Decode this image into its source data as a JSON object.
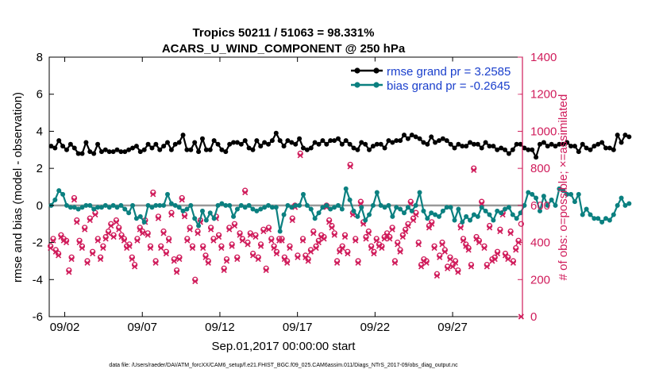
{
  "chart_data": {
    "type": "line",
    "title_line1": "Tropics 50211 / 51063 = 98.331%",
    "title_line2": "ACARS_U_WIND_COMPONENT @ 250 hPa",
    "xlabel": "Sep.01,2017 00:00:00 start",
    "ylabel_left": "rmse and bias (model - observation)",
    "ylabel_right": "# of obs: o=possible; ×=assimilated",
    "footer": "data file: /Users/raeder/DAI/ATM_forcXX/CAM6_setup/f.e21.FHIST_BGC.f09_025.CAM6assim.011/Diags_NTrS_2017-09/obs_diag_output.nc",
    "xlim": [
      0,
      30.5
    ],
    "ylim_left": [
      -6,
      8
    ],
    "ylim_right": [
      0,
      1400
    ],
    "x_tick_values": [
      1,
      6,
      11,
      16,
      21,
      26
    ],
    "x_tick_labels": [
      "09/02",
      "09/07",
      "09/12",
      "09/17",
      "09/22",
      "09/27"
    ],
    "y_left_ticks": [
      -6,
      -4,
      -2,
      0,
      2,
      4,
      6,
      8
    ],
    "y_right_ticks": [
      0,
      200,
      400,
      600,
      800,
      1000,
      1200,
      1400
    ],
    "zero_line": 0,
    "legend": {
      "rmse": "rmse grand pr = 3.2585",
      "bias": "bias grand pr = -0.2645"
    },
    "colors": {
      "rmse": "#000000",
      "bias": "#0b8080",
      "obs": "#d01c5b",
      "zero": "#9a9a9a",
      "legend_text": "#1a3fcc"
    },
    "x_start": 0.125,
    "x_step": 0.25,
    "rmse": [
      3.2,
      3.1,
      3.5,
      3.2,
      3.0,
      3.3,
      3.1,
      2.8,
      2.8,
      3.4,
      2.9,
      2.8,
      3.3,
      2.9,
      3.0,
      2.9,
      2.9,
      3.0,
      2.9,
      2.9,
      3.0,
      3.1,
      3.2,
      2.9,
      3.0,
      3.3,
      3.1,
      3.3,
      3.0,
      3.2,
      3.4,
      3.0,
      3.3,
      3.4,
      3.8,
      3.0,
      3.0,
      3.4,
      2.9,
      3.6,
      3.0,
      3.0,
      3.5,
      3.3,
      3.0,
      2.9,
      3.3,
      3.4,
      3.4,
      3.3,
      3.5,
      3.1,
      3.0,
      3.5,
      3.2,
      3.4,
      3.3,
      3.5,
      3.9,
      3.5,
      3.2,
      3.5,
      3.4,
      3.3,
      3.6,
      3.1,
      3.0,
      3.1,
      3.4,
      3.3,
      3.5,
      3.3,
      3.5,
      3.5,
      3.6,
      3.3,
      3.5,
      3.3,
      3.1,
      3.0,
      3.4,
      3.3,
      3.0,
      3.2,
      3.3,
      3.3,
      3.1,
      3.5,
      3.4,
      3.5,
      3.5,
      3.8,
      3.6,
      3.8,
      3.7,
      3.6,
      3.4,
      3.3,
      3.7,
      3.4,
      3.5,
      3.6,
      3.5,
      3.3,
      3.1,
      3.3,
      3.2,
      3.2,
      3.4,
      3.3,
      3.3,
      3.1,
      3.4,
      3.2,
      3.2,
      3.0,
      3.1,
      3.0,
      2.8,
      3.0,
      3.3,
      3.3,
      3.1,
      3.0,
      3.0,
      2.6,
      3.3,
      3.4,
      3.2,
      3.3,
      3.2,
      3.3,
      3.3,
      3.4,
      3.2,
      3.2,
      2.9,
      3.3,
      3.1,
      3.0,
      3.2,
      3.3,
      3.4,
      3.1,
      3.1,
      3.0,
      3.8,
      3.4,
      3.8,
      3.7
    ],
    "bias": [
      0.0,
      0.3,
      0.8,
      0.6,
      0.0,
      -0.1,
      -0.1,
      -0.2,
      -0.1,
      0.0,
      0.0,
      -0.2,
      -0.1,
      -0.1,
      0.0,
      -0.1,
      0.0,
      -0.1,
      0.0,
      -0.2,
      -0.4,
      0.0,
      -0.7,
      -0.6,
      -0.9,
      0.0,
      -0.1,
      0.0,
      0.0,
      0.0,
      0.6,
      0.1,
      0.0,
      -0.1,
      -0.3,
      -0.2,
      0.0,
      -0.7,
      -1.1,
      -0.3,
      -0.8,
      -0.4,
      -0.7,
      0.0,
      0.1,
      0.0,
      0.0,
      -0.6,
      -0.2,
      0.0,
      -0.1,
      0.0,
      -0.2,
      -0.3,
      -0.2,
      -0.1,
      0.0,
      -0.1,
      -0.1,
      -1.4,
      -0.5,
      0.0,
      -0.1,
      0.0,
      0.0,
      0.6,
      0.0,
      -0.2,
      -0.7,
      -0.4,
      -0.1,
      0.0,
      -0.2,
      -0.1,
      0.0,
      -0.2,
      0.9,
      0.3,
      -0.3,
      -0.6,
      -0.1,
      -0.8,
      -0.5,
      0.0,
      0.7,
      0.0,
      -0.1,
      0.0,
      -0.6,
      -0.1,
      -0.2,
      -0.4,
      -0.1,
      -0.3,
      0.0,
      0.7,
      -0.3,
      -0.7,
      -0.4,
      -0.5,
      -0.6,
      -0.3,
      -0.1,
      -0.1,
      -0.8,
      -0.2,
      -0.9,
      -0.6,
      -0.8,
      -0.5,
      -0.6,
      -0.1,
      -0.3,
      -0.5,
      -0.8,
      -0.3,
      -0.4,
      -0.2,
      -0.1,
      -0.5,
      -0.7,
      -0.4,
      0.0,
      0.7,
      0.6,
      0.4,
      -0.3,
      0.5,
      0.0,
      0.3,
      0.0,
      0.9,
      0.8,
      0.6,
      0.6,
      0.2,
      0.6,
      -0.5,
      -0.2,
      -0.5,
      -0.7,
      -0.7,
      -0.9,
      -0.7,
      -0.8,
      -0.5,
      0.0,
      0.4,
      0.0,
      0.1
    ],
    "obs_possible": [
      380,
      420,
      360,
      340,
      440,
      420,
      410,
      250,
      320,
      640,
      520,
      410,
      380,
      480,
      300,
      530,
      350,
      560,
      420,
      320,
      380,
      430,
      460,
      500,
      440,
      520,
      480,
      440,
      420,
      380,
      390,
      320,
      280,
      420,
      480,
      460,
      520,
      450,
      380,
      670,
      300,
      540,
      380,
      460,
      350,
      420,
      560,
      310,
      250,
      320,
      640,
      550,
      420,
      480,
      380,
      200,
      460,
      520,
      380,
      330,
      300,
      480,
      420,
      540,
      440,
      380,
      260,
      310,
      480,
      390,
      500,
      320,
      450,
      420,
      680,
      400,
      450,
      340,
      440,
      320,
      390,
      470,
      260,
      480,
      420,
      380,
      350,
      420,
      420,
      320,
      300,
      380,
      530,
      600,
      330,
      880,
      420,
      330,
      310,
      360,
      460,
      380,
      410,
      440,
      430,
      600,
      520,
      490,
      450,
      300,
      360,
      380,
      440,
      350,
      820,
      560,
      420,
      300,
      620,
      510,
      430,
      460,
      380,
      350,
      420,
      390,
      380,
      430,
      450,
      430,
      480,
      300,
      400,
      360,
      440,
      470,
      500,
      620,
      530,
      560,
      400,
      280,
      310,
      300,
      490,
      510,
      380,
      230,
      330,
      400,
      360,
      270,
      320,
      280,
      300,
      250,
      490,
      420,
      390,
      370,
      280,
      800,
      430,
      410,
      620,
      380,
      280,
      490,
      310,
      320,
      350,
      470,
      560,
      340,
      320,
      460,
      300,
      370,
      410,
      500
    ],
    "obs_assimilated": [
      370,
      410,
      350,
      330,
      430,
      410,
      400,
      240,
      310,
      630,
      510,
      400,
      370,
      470,
      290,
      520,
      340,
      550,
      410,
      310,
      370,
      420,
      450,
      490,
      430,
      510,
      470,
      430,
      410,
      370,
      380,
      310,
      270,
      410,
      470,
      450,
      510,
      440,
      370,
      660,
      290,
      530,
      370,
      450,
      340,
      410,
      550,
      300,
      240,
      310,
      630,
      540,
      410,
      470,
      370,
      190,
      450,
      510,
      370,
      320,
      290,
      470,
      410,
      530,
      430,
      370,
      250,
      300,
      470,
      380,
      490,
      310,
      440,
      410,
      670,
      390,
      440,
      330,
      430,
      310,
      380,
      460,
      250,
      470,
      410,
      370,
      340,
      410,
      410,
      310,
      290,
      370,
      520,
      590,
      320,
      870,
      410,
      320,
      300,
      350,
      450,
      370,
      400,
      430,
      420,
      590,
      510,
      480,
      440,
      290,
      350,
      370,
      430,
      340,
      810,
      550,
      410,
      290,
      610,
      500,
      420,
      450,
      370,
      340,
      410,
      380,
      370,
      420,
      440,
      420,
      470,
      290,
      390,
      350,
      430,
      460,
      490,
      610,
      520,
      550,
      390,
      270,
      300,
      290,
      480,
      500,
      370,
      220,
      320,
      390,
      350,
      260,
      310,
      270,
      290,
      240,
      480,
      410,
      380,
      360,
      270,
      790,
      420,
      400,
      610,
      370,
      270,
      480,
      300,
      310,
      340,
      460,
      550,
      330,
      310,
      450,
      290,
      360,
      400,
      0
    ]
  }
}
